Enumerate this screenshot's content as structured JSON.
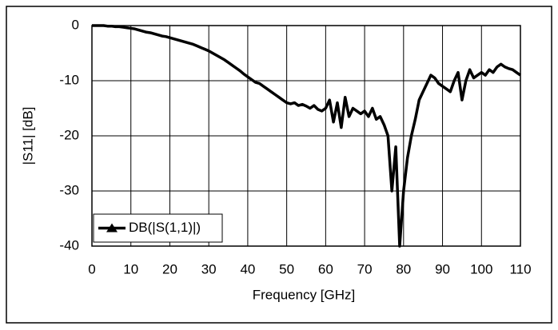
{
  "chart_data": {
    "type": "line",
    "x_label": "Frequency [GHz]",
    "y_label": "|S11| [dB]",
    "x": [
      0,
      1,
      2,
      3,
      4,
      5,
      6,
      7,
      8,
      9,
      10,
      11,
      12,
      13,
      14,
      15,
      16,
      17,
      18,
      19,
      20,
      21,
      22,
      23,
      24,
      25,
      26,
      27,
      28,
      29,
      30,
      31,
      32,
      33,
      34,
      35,
      36,
      37,
      38,
      39,
      40,
      41,
      42,
      43,
      44,
      45,
      46,
      47,
      48,
      49,
      50,
      51,
      52,
      53,
      54,
      55,
      56,
      57,
      58,
      59,
      60,
      61,
      62,
      63,
      64,
      65,
      66,
      67,
      68,
      69,
      70,
      71,
      72,
      73,
      74,
      75,
      76,
      77,
      78,
      79,
      80,
      81,
      82,
      83,
      84,
      85,
      86,
      87,
      88,
      89,
      90,
      91,
      92,
      93,
      94,
      95,
      96,
      97,
      98,
      99,
      100,
      101,
      102,
      103,
      104,
      105,
      106,
      107,
      108,
      109,
      110
    ],
    "series": [
      {
        "name": "DB(|S(1,1)|)",
        "color": "#000000",
        "values": [
          0,
          0,
          0,
          0,
          -0.1,
          -0.1,
          -0.2,
          -0.2,
          -0.3,
          -0.4,
          -0.5,
          -0.6,
          -0.8,
          -1.0,
          -1.2,
          -1.3,
          -1.5,
          -1.7,
          -1.9,
          -2.0,
          -2.2,
          -2.4,
          -2.6,
          -2.8,
          -3.0,
          -3.2,
          -3.4,
          -3.7,
          -4.0,
          -4.3,
          -4.6,
          -5.0,
          -5.4,
          -5.8,
          -6.2,
          -6.7,
          -7.2,
          -7.7,
          -8.2,
          -8.8,
          -9.3,
          -9.8,
          -10.3,
          -10.5,
          -11.0,
          -11.5,
          -12.0,
          -12.5,
          -13.0,
          -13.5,
          -14.0,
          -14.2,
          -14.0,
          -14.5,
          -14.3,
          -14.6,
          -15.0,
          -14.5,
          -15.2,
          -15.5,
          -15.0,
          -13.5,
          -17.5,
          -14.0,
          -18.5,
          -13.0,
          -16.5,
          -15.0,
          -15.5,
          -16.0,
          -15.5,
          -16.5,
          -15.0,
          -17.0,
          -16.5,
          -18.0,
          -20.0,
          -30.0,
          -22.0,
          -40.0,
          -30.0,
          -24.0,
          -20.0,
          -17.0,
          -13.5,
          -12.0,
          -10.5,
          -9.0,
          -9.5,
          -10.5,
          -11.0,
          -11.5,
          -12.0,
          -10.0,
          -8.5,
          -13.5,
          -10.0,
          -8.0,
          -9.5,
          -9.0,
          -8.5,
          -9.0,
          -8.0,
          -8.5,
          -7.5,
          -7.0,
          -7.5,
          -7.8,
          -8.0,
          -8.5,
          -9.0
        ]
      }
    ],
    "xlim": [
      0,
      110
    ],
    "xticks": [
      0,
      10,
      20,
      30,
      40,
      50,
      60,
      70,
      80,
      90,
      100,
      110
    ],
    "ylim": [
      -40,
      0
    ],
    "yticks": [
      0,
      -10,
      -20,
      -30,
      -40
    ],
    "grid": true,
    "legend": "lower left"
  }
}
